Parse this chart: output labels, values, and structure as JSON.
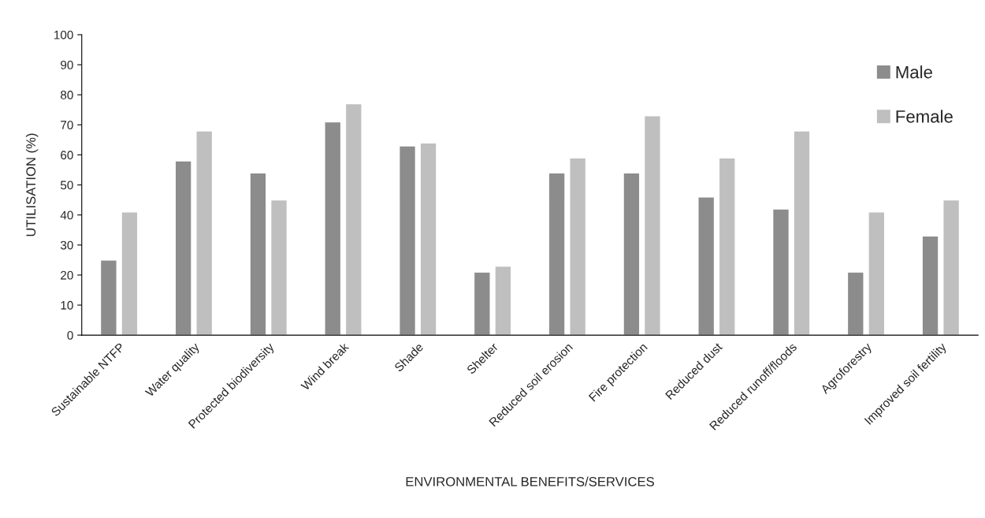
{
  "chart_data": {
    "type": "bar",
    "categories": [
      "Sustainable NTFP",
      "Water quality",
      "Protected biodiversity",
      "Wind break",
      "Shade",
      "Shelter",
      "Reduced soil erosion",
      "Fire protection",
      "Reduced dust",
      "Reduced runoff/floods",
      "Agroforestry",
      "Improved soil fertility"
    ],
    "series": [
      {
        "name": "Male",
        "color": "#8c8c8c",
        "values": [
          25,
          58,
          54,
          71,
          63,
          21,
          54,
          54,
          46,
          42,
          21,
          33
        ]
      },
      {
        "name": "Female",
        "color": "#bfbfbf",
        "values": [
          41,
          68,
          45,
          77,
          64,
          23,
          59,
          73,
          59,
          68,
          41,
          45
        ]
      }
    ],
    "xlabel": "ENVIRONMENTAL BENEFITS/SERVICES",
    "ylabel": "UTILISATION (%)",
    "ylim": [
      0,
      100
    ],
    "yticks": [
      0,
      10,
      20,
      30,
      40,
      50,
      60,
      70,
      80,
      90,
      100
    ],
    "grid": false,
    "legend": "top right"
  }
}
